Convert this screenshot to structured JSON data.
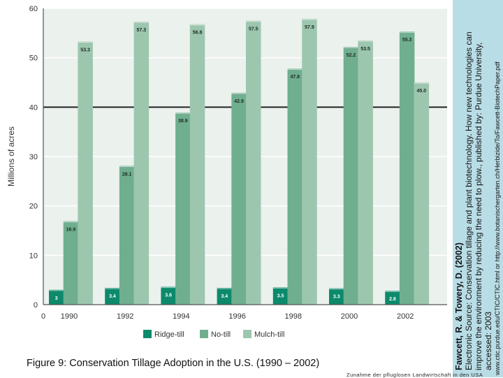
{
  "chart_data": {
    "type": "bar",
    "ylabel": "Millions of acres",
    "ylim": [
      0,
      60
    ],
    "yticks": [
      "0",
      "10",
      "20",
      "30",
      "40",
      "50",
      "60"
    ],
    "categories": [
      "1990",
      "1992",
      "1994",
      "1996",
      "1998",
      "2000",
      "2002"
    ],
    "xtick_zero": "0",
    "grid": true,
    "legend_position": "bottom",
    "series": [
      {
        "name": "Ridge-till",
        "color": "#0c8a6b",
        "values": [
          3,
          3.4,
          3.6,
          3.4,
          3.5,
          3.3,
          2.8
        ],
        "labels": [
          "3",
          "3.4",
          "3.6",
          "3.4",
          "3.5",
          "3.3",
          "2.8"
        ]
      },
      {
        "name": "No-till",
        "color": "#70ae90",
        "values": [
          16.9,
          28.1,
          38.9,
          42.9,
          47.8,
          52.2,
          55.3
        ],
        "labels": [
          "16.9",
          "28.1",
          "38.9",
          "42.9",
          "47.8",
          "52.2",
          "55.3"
        ]
      },
      {
        "name": "Mulch-till",
        "color": "#9dc6ae",
        "values": [
          53.3,
          57.3,
          56.8,
          57.5,
          57.9,
          53.5,
          45.0
        ],
        "labels": [
          "53.3",
          "57.3",
          "56.8",
          "57.5",
          "57.9",
          "53.5",
          "45.0"
        ]
      }
    ]
  },
  "figure_caption": "Figure 9: Conservation Tillage Adoption in the U.S. (1990 – 2002)",
  "citation": {
    "author": "Fawcett, R. & Towery, D. (2002)",
    "line1": "Electronic Source: Conservation tillage and plant biotechnology. How new technologies can",
    "line2": "improve the environment by reducing the need to plow., published by: Purdue University,",
    "line3": "accessed: 2003",
    "url": "www.ctic.purdue.edu/CTIC/CTIC.html or http://www.botanischergarten.ch/Herbizide/To/Fawcett-BiotechPaper.pdf"
  },
  "footer": "Zunahme der pfluglosen Landwirtschaft in den USA",
  "colors": {
    "panel": "#b9dde6",
    "plot_bg": "#ebf1ed",
    "gridline": "#ffffff",
    "axis": "#555555",
    "highlight_line": "#222222"
  }
}
